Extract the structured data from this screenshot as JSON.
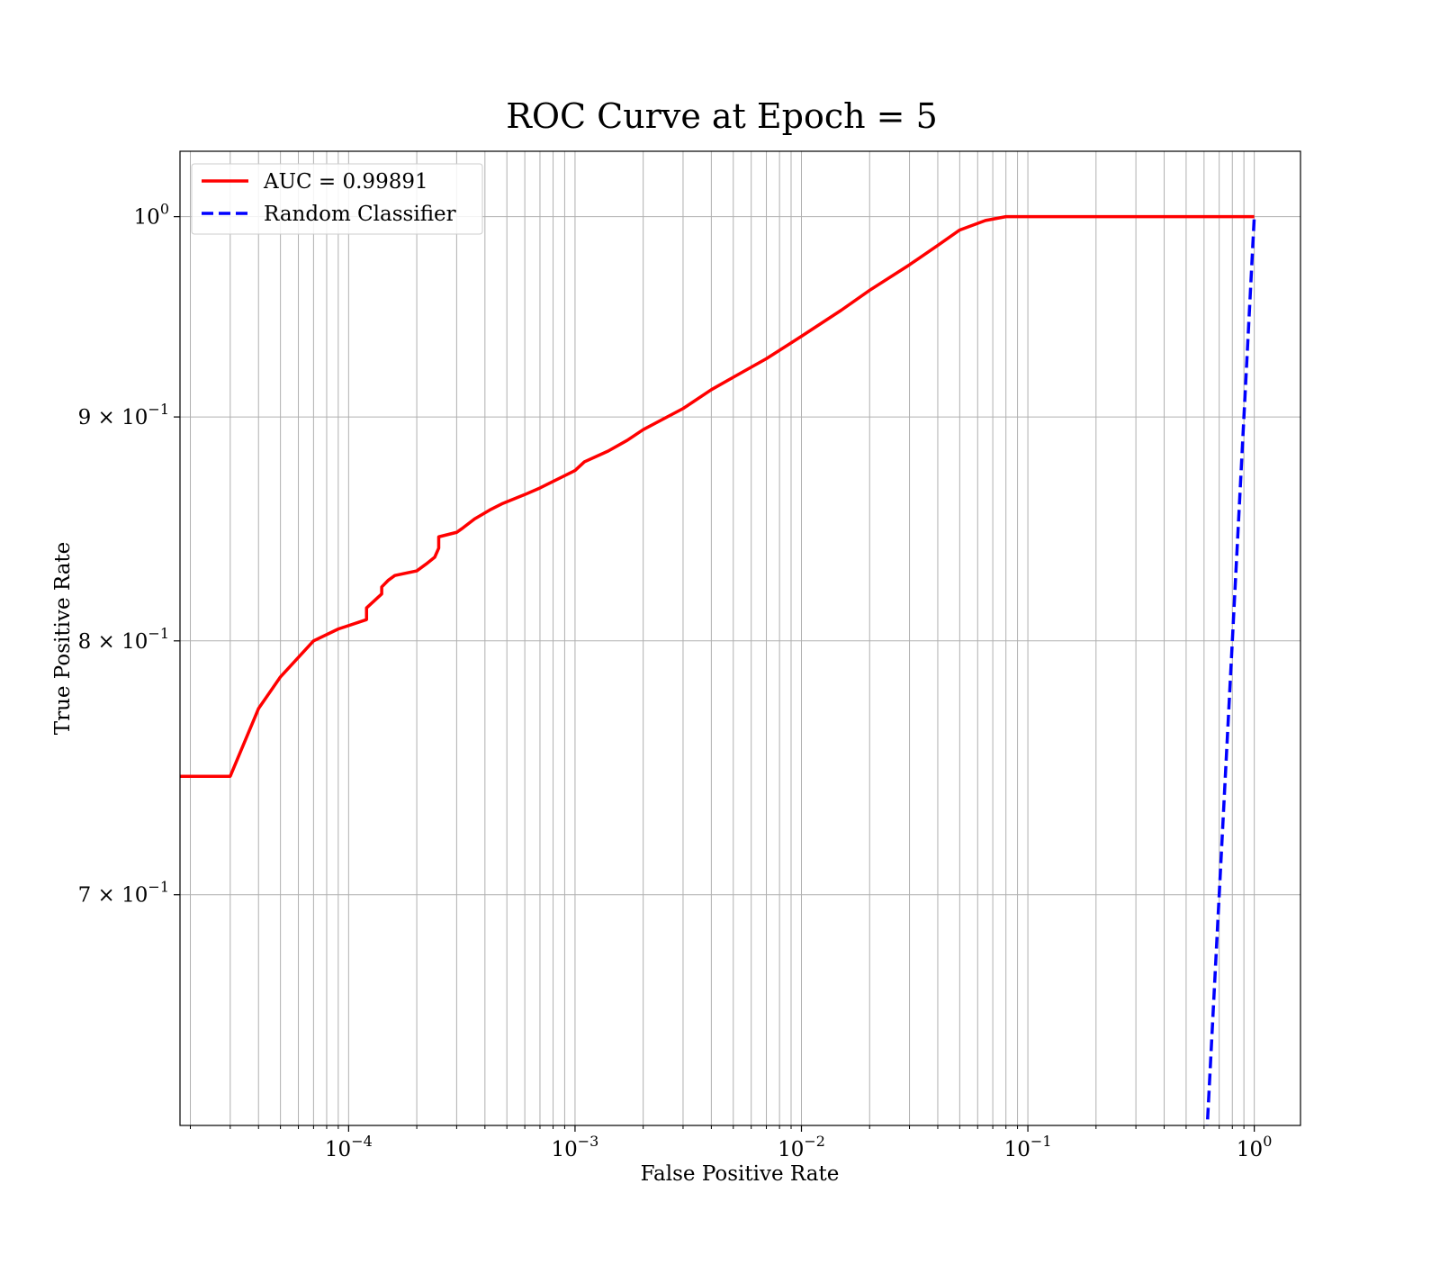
{
  "chart_data": {
    "type": "line",
    "title": "ROC Curve at Epoch = 5",
    "xlabel": "False Positive Rate",
    "ylabel": "True Positive Rate",
    "xscale": "log",
    "yscale": "log",
    "xlim": [
      1.8e-05,
      1.6
    ],
    "ylim": [
      0.62,
      1.035
    ],
    "grid": "both (major and minor)",
    "legend_position": "top-left",
    "x_ticks": [
      {
        "value": 0.0001,
        "label": "10^{-4}"
      },
      {
        "value": 0.001,
        "label": "10^{-3}"
      },
      {
        "value": 0.01,
        "label": "10^{-2}"
      },
      {
        "value": 0.1,
        "label": "10^{-1}"
      },
      {
        "value": 1,
        "label": "10^{0}"
      }
    ],
    "y_ticks": [
      {
        "value": 0.7,
        "label": "7 × 10^{-1}"
      },
      {
        "value": 0.8,
        "label": "8 × 10^{-1}"
      },
      {
        "value": 0.9,
        "label": "9 × 10^{-1}"
      },
      {
        "value": 1.0,
        "label": "10^{0}"
      }
    ],
    "series": [
      {
        "name": "AUC = 0.99891",
        "color": "#ff0000",
        "style": "solid",
        "points": [
          [
            1.8e-05,
            0.745
          ],
          [
            3e-05,
            0.745
          ],
          [
            4e-05,
            0.772
          ],
          [
            5e-05,
            0.785
          ],
          [
            7e-05,
            0.8
          ],
          [
            9e-05,
            0.805
          ],
          [
            0.00012,
            0.809
          ],
          [
            0.00012,
            0.814
          ],
          [
            0.00014,
            0.82
          ],
          [
            0.00014,
            0.823
          ],
          [
            0.00015,
            0.826
          ],
          [
            0.00016,
            0.828
          ],
          [
            0.0002,
            0.83
          ],
          [
            0.00022,
            0.833
          ],
          [
            0.00024,
            0.836
          ],
          [
            0.00025,
            0.84
          ],
          [
            0.00025,
            0.845
          ],
          [
            0.0003,
            0.847
          ],
          [
            0.00032,
            0.849
          ],
          [
            0.00036,
            0.853
          ],
          [
            0.00042,
            0.857
          ],
          [
            0.00048,
            0.86
          ],
          [
            0.0006,
            0.864
          ],
          [
            0.0007,
            0.867
          ],
          [
            0.0008,
            0.87
          ],
          [
            0.001,
            0.875
          ],
          [
            0.0011,
            0.879
          ],
          [
            0.0014,
            0.884
          ],
          [
            0.0017,
            0.889
          ],
          [
            0.002,
            0.894
          ],
          [
            0.003,
            0.904
          ],
          [
            0.004,
            0.913
          ],
          [
            0.005,
            0.919
          ],
          [
            0.007,
            0.928
          ],
          [
            0.01,
            0.939
          ],
          [
            0.015,
            0.952
          ],
          [
            0.02,
            0.962
          ],
          [
            0.03,
            0.975
          ],
          [
            0.04,
            0.985
          ],
          [
            0.05,
            0.993
          ],
          [
            0.065,
            0.998
          ],
          [
            0.08,
            1.0
          ],
          [
            1.0,
            1.0
          ]
        ]
      },
      {
        "name": "Random Classifier",
        "color": "#0000ff",
        "style": "dashed",
        "points": [
          [
            0.6,
            0.6
          ],
          [
            1.0,
            1.0
          ]
        ]
      }
    ]
  }
}
